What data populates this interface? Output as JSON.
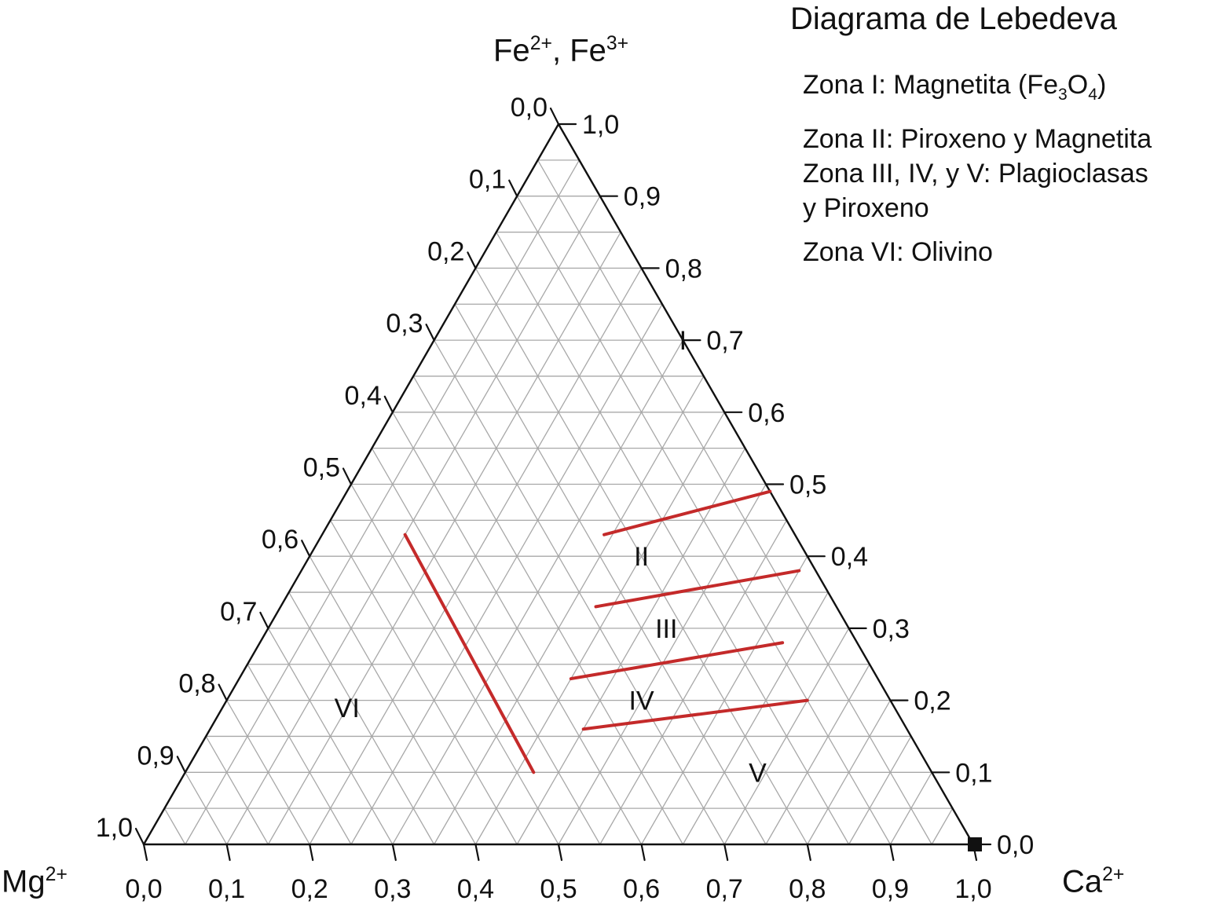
{
  "title": "Diagrama de Lebedeva",
  "legend": {
    "zona1_prefix": "Zona I: Magnetita (Fe",
    "zona1_sub1": "3",
    "zona1_mid": "O",
    "zona1_sub2": "4",
    "zona1_suffix": ")",
    "zona2": "Zona II: Piroxeno y Magnetita",
    "zona345_line1": "Zona III, IV, y V: Plagioclasas",
    "zona345_line2": "y Piroxeno",
    "zona6": "Zona VI: Olivino"
  },
  "vertices": {
    "top": {
      "base1": "Fe",
      "sup1": "2+",
      "sep": ", Fe",
      "sup2": "3+"
    },
    "left": {
      "base": "Mg",
      "sup": "2+"
    },
    "right": {
      "base": "Ca",
      "sup": "2+"
    }
  },
  "axes": {
    "left_ticks": [
      "0,0",
      "0,1",
      "0,2",
      "0,3",
      "0,4",
      "0,5",
      "0,6",
      "0,7",
      "0,8",
      "0,9",
      "1,0"
    ],
    "right_ticks": [
      "1,0",
      "0,9",
      "0,8",
      "0,7",
      "0,6",
      "0,5",
      "0,4",
      "0,3",
      "0,2",
      "0,1",
      "0,0"
    ],
    "bottom_ticks": [
      "0,0",
      "0,1",
      "0,2",
      "0,3",
      "0,4",
      "0,5",
      "0,6",
      "0,7",
      "0,8",
      "0,9",
      "1,0"
    ],
    "grid_divisions": 20
  },
  "zones": [
    {
      "label": "I",
      "fe": 0.7,
      "ca": 0.3
    },
    {
      "label": "II",
      "fe": 0.4,
      "ca": 0.4
    },
    {
      "label": "III",
      "fe": 0.3,
      "ca": 0.48
    },
    {
      "label": "IV",
      "fe": 0.2,
      "ca": 0.5
    },
    {
      "label": "V",
      "fe": 0.1,
      "ca": 0.69
    },
    {
      "label": "VI",
      "fe": 0.19,
      "ca": 0.15
    }
  ],
  "boundaries": [
    {
      "from": {
        "fe": 0.43,
        "ca": 0.34
      },
      "to": {
        "fe": 0.49,
        "ca": 0.51
      }
    },
    {
      "from": {
        "fe": 0.33,
        "ca": 0.38
      },
      "to": {
        "fe": 0.38,
        "ca": 0.6
      }
    },
    {
      "from": {
        "fe": 0.23,
        "ca": 0.4
      },
      "to": {
        "fe": 0.28,
        "ca": 0.63
      }
    },
    {
      "from": {
        "fe": 0.16,
        "ca": 0.45
      },
      "to": {
        "fe": 0.2,
        "ca": 0.7
      }
    },
    {
      "from": {
        "fe": 0.43,
        "ca": 0.1
      },
      "to": {
        "fe": 0.1,
        "ca": 0.42
      }
    }
  ],
  "marker": {
    "name": "Ca2+ vertex",
    "fe": 0.0,
    "ca": 1.0
  },
  "colors": {
    "boundary": "#c42a2a",
    "grid": "#a8a8a8",
    "frame": "#111111",
    "marker": "#111111"
  }
}
